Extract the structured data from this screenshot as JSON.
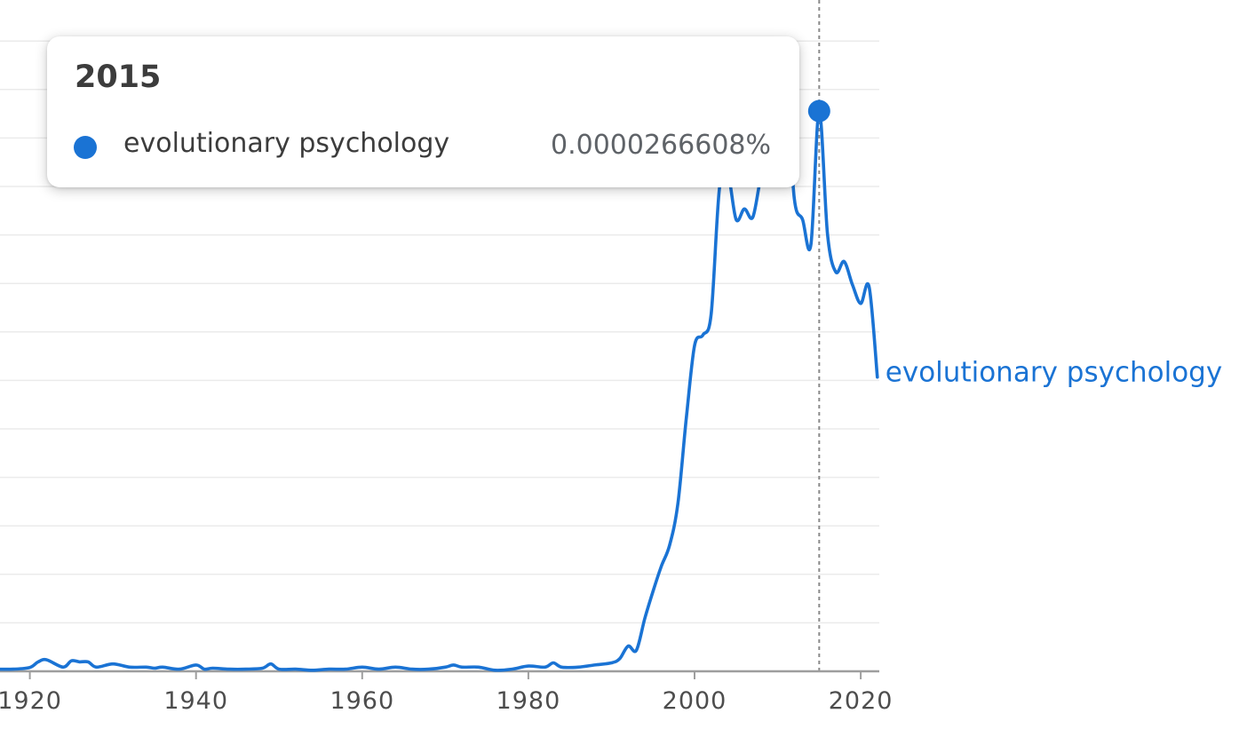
{
  "colors": {
    "series": "#1a73d4",
    "grid": "#ebebeb",
    "axis": "#9e9e9e",
    "crosshair": "#8a8a8a"
  },
  "tooltip": {
    "year": "2015",
    "series_name": "evolutionary psychology",
    "value": "0.0000266608%"
  },
  "chart_data": {
    "type": "line",
    "title": "",
    "xlabel": "",
    "ylabel": "",
    "xlim": [
      1916,
      2022
    ],
    "ylim": [
      0,
      3e-05
    ],
    "grid": true,
    "x_ticks": [
      1920,
      1940,
      1960,
      1980,
      2000,
      2020
    ],
    "x_tick_labels": [
      "1920",
      "1940",
      "1960",
      "1980",
      "2000",
      "2020"
    ],
    "highlight": {
      "x": 2015,
      "y": 2.66608e-05
    },
    "series": [
      {
        "name": "evolutionary psychology",
        "x": [
          1916,
          1918,
          1920,
          1921,
          1922,
          1924,
          1925,
          1926,
          1927,
          1928,
          1930,
          1932,
          1934,
          1935,
          1936,
          1938,
          1940,
          1941,
          1942,
          1944,
          1946,
          1948,
          1949,
          1950,
          1952,
          1954,
          1956,
          1958,
          1960,
          1962,
          1964,
          1966,
          1968,
          1970,
          1971,
          1972,
          1974,
          1976,
          1978,
          1980,
          1982,
          1983,
          1984,
          1986,
          1988,
          1990,
          1991,
          1992,
          1993,
          1994,
          1995,
          1996,
          1997,
          1998,
          1999,
          2000,
          2001,
          2002,
          2003,
          2004,
          2005,
          2006,
          2007,
          2008,
          2009,
          2010,
          2011,
          2012,
          2013,
          2014,
          2015,
          2016,
          2017,
          2018,
          2019,
          2020,
          2021,
          2022
        ],
        "values": [
          1e-07,
          1e-07,
          1.8e-07,
          4.5e-07,
          5.5e-07,
          2e-07,
          5e-07,
          4.5e-07,
          4.5e-07,
          2e-07,
          3.5e-07,
          2e-07,
          2e-07,
          1.5e-07,
          2e-07,
          1e-07,
          3e-07,
          1e-07,
          1.5e-07,
          1e-07,
          1e-07,
          1.5e-07,
          3.5e-07,
          1e-07,
          1e-07,
          5e-08,
          1e-07,
          1e-07,
          2e-07,
          1e-07,
          2e-07,
          1e-07,
          1e-07,
          2e-07,
          3e-07,
          2e-07,
          2e-07,
          5e-08,
          1e-07,
          2.5e-07,
          2e-07,
          4e-07,
          2e-07,
          2e-07,
          3e-07,
          4e-07,
          6e-07,
          1.2e-06,
          1e-06,
          2.5e-06,
          3.8e-06,
          5e-06,
          6e-06,
          8e-06,
          1.2e-05,
          1.55e-05,
          1.6e-05,
          1.7e-05,
          2.3e-05,
          2.37e-05,
          2.15e-05,
          2.2e-05,
          2.16e-05,
          2.35e-05,
          2.43e-05,
          2.5e-05,
          2.8e-05,
          2.25e-05,
          2.15e-05,
          2.03e-05,
          2.66608e-05,
          2.08e-05,
          1.9e-05,
          1.95e-05,
          1.84e-05,
          1.75e-05,
          1.83e-05,
          1.4e-05
        ]
      }
    ]
  }
}
